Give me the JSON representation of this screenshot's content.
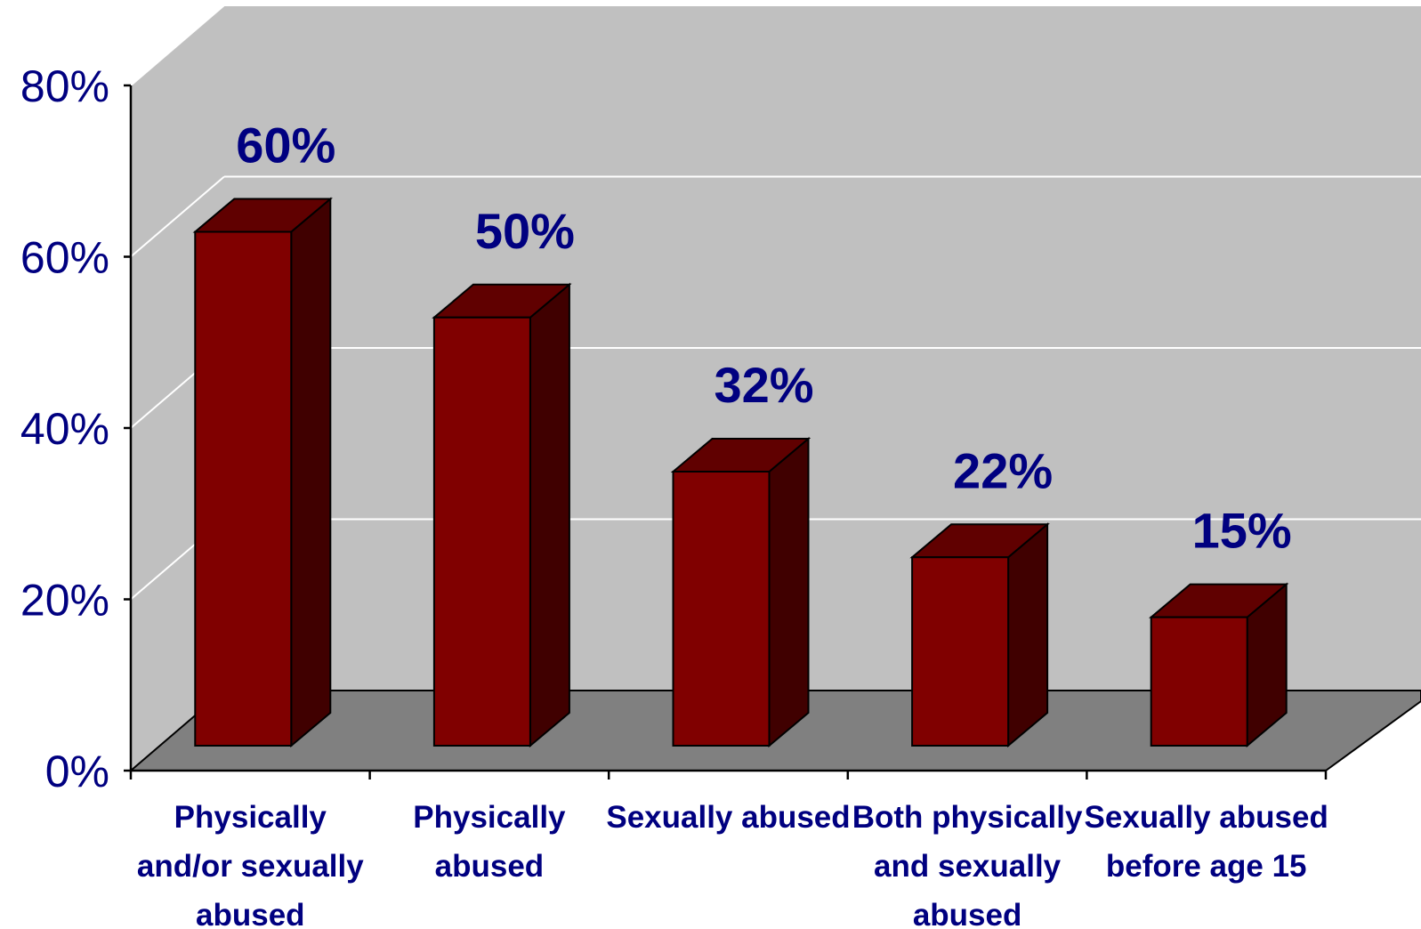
{
  "chart_data": {
    "type": "bar",
    "three_d": true,
    "categories": [
      [
        "Physically",
        "and/or sexually",
        "abused"
      ],
      [
        "Physically",
        "abused"
      ],
      [
        "Sexually abused"
      ],
      [
        "Both physically",
        "and sexually",
        "abused"
      ],
      [
        "Sexually abused",
        "before age 15"
      ]
    ],
    "values": [
      60,
      50,
      32,
      22,
      15
    ],
    "data_labels": [
      "60%",
      "50%",
      "32%",
      "22%",
      "15%"
    ],
    "y_ticks": [
      0,
      20,
      40,
      60,
      80
    ],
    "y_tick_labels": [
      "0%",
      "20%",
      "40%",
      "60%",
      "80%"
    ],
    "ylim": [
      0,
      80
    ],
    "grid": true,
    "legend": "none",
    "title": "",
    "xlabel": "",
    "ylabel": ""
  },
  "colors": {
    "wall": "#c0c0c0",
    "side_wall": "#c0c0c0",
    "floor": "#808080",
    "gridline": "#ffffff",
    "bar_front": "#800000",
    "bar_top": "#600000",
    "bar_side": "#400000",
    "bar_outline": "#000000",
    "text": "#000080",
    "axis": "#000000"
  }
}
